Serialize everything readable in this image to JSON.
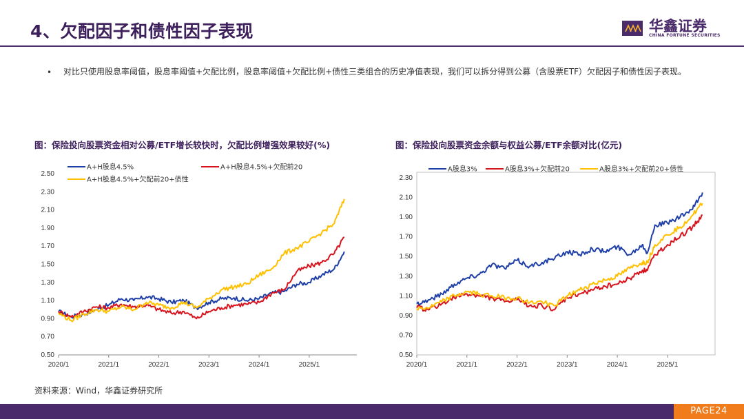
{
  "header": {
    "title": "4、欠配因子和债性因子表现",
    "logo_cn": "华鑫证券",
    "logo_en": "CHINA FORTUNE SECURITIES"
  },
  "bullet": "对比只使用股息率阈值，股息率阈值+欠配比例，股息率阈值+欠配比例+债性三类组合的历史净值表现，我们可以拆分得到公募（含股票ETF）欠配因子和债性因子表现。",
  "source": "资料来源：Wind，华鑫证券研究所",
  "page": "PAGE24",
  "colors": {
    "blue": "#1f3fa8",
    "red": "#d8131d",
    "yellow": "#ffc000",
    "brand": "#4a2a6a",
    "accent": "#f07c1c"
  },
  "chart_data": [
    {
      "type": "line",
      "title": "图：保险投向股票资金相对公募/ETF增长较快时，欠配比例增强效果较好(%)",
      "ylim": [
        0.5,
        2.5
      ],
      "yticks": [
        "0.50",
        "0.70",
        "0.90",
        "1.10",
        "1.30",
        "1.50",
        "1.70",
        "1.90",
        "2.10",
        "2.30",
        "2.50"
      ],
      "xticks": [
        "2020/1",
        "2021/1",
        "2022/1",
        "2023/1",
        "2024/1",
        "2025/1"
      ],
      "xlim": [
        2020.0,
        2025.95
      ],
      "legend_position": "top",
      "series": [
        {
          "name": "A+H股息4.5%",
          "color": "#1f3fa8",
          "x": [
            2020.0,
            2020.25,
            2020.5,
            2020.75,
            2021.0,
            2021.25,
            2021.5,
            2021.75,
            2022.0,
            2022.25,
            2022.5,
            2022.75,
            2023.0,
            2023.25,
            2023.5,
            2023.75,
            2024.0,
            2024.25,
            2024.5,
            2024.75,
            2025.0,
            2025.25,
            2025.5,
            2025.7
          ],
          "y": [
            0.98,
            0.92,
            0.95,
            1.0,
            1.05,
            1.12,
            1.1,
            1.14,
            1.12,
            1.08,
            1.1,
            1.02,
            1.08,
            1.12,
            1.13,
            1.1,
            1.12,
            1.18,
            1.2,
            1.28,
            1.3,
            1.38,
            1.45,
            1.64
          ]
        },
        {
          "name": "A+H股息4.5%+欠配前20",
          "color": "#d8131d",
          "x": [
            2020.0,
            2020.25,
            2020.5,
            2020.75,
            2021.0,
            2021.25,
            2021.5,
            2021.75,
            2022.0,
            2022.25,
            2022.5,
            2022.75,
            2023.0,
            2023.25,
            2023.5,
            2023.75,
            2024.0,
            2024.25,
            2024.5,
            2024.75,
            2025.0,
            2025.25,
            2025.5,
            2025.7
          ],
          "y": [
            0.98,
            0.92,
            0.98,
            1.03,
            1.02,
            1.06,
            1.03,
            1.05,
            1.0,
            0.96,
            0.98,
            0.9,
            0.98,
            1.02,
            1.05,
            1.06,
            1.08,
            1.18,
            1.22,
            1.42,
            1.48,
            1.52,
            1.62,
            1.8
          ]
        },
        {
          "name": "A+H股息4.5%+欠配前20+债性",
          "color": "#ffc000",
          "x": [
            2020.0,
            2020.25,
            2020.5,
            2020.75,
            2021.0,
            2021.25,
            2021.5,
            2021.75,
            2022.0,
            2022.25,
            2022.5,
            2022.75,
            2023.0,
            2023.25,
            2023.5,
            2023.75,
            2024.0,
            2024.25,
            2024.5,
            2024.75,
            2025.0,
            2025.25,
            2025.5,
            2025.7
          ],
          "y": [
            0.96,
            0.88,
            0.95,
            1.0,
            0.98,
            1.03,
            1.0,
            1.08,
            1.05,
            1.02,
            1.08,
            1.02,
            1.12,
            1.22,
            1.25,
            1.28,
            1.38,
            1.45,
            1.62,
            1.68,
            1.75,
            1.85,
            1.95,
            2.22
          ]
        }
      ]
    },
    {
      "type": "line",
      "title": "图：保险投向股票资金余额与权益公募/ETF余额对比(亿元)",
      "ylim": [
        0.5,
        2.3
      ],
      "yticks": [
        "0.50",
        "0.70",
        "0.90",
        "1.10",
        "1.30",
        "1.50",
        "1.70",
        "1.90",
        "2.10",
        "2.30"
      ],
      "xticks": [
        "2020/1",
        "2021/1",
        "2022/1",
        "2023/1",
        "2024/1",
        "2025/1"
      ],
      "xlim": [
        2020.0,
        2025.95
      ],
      "legend_position": "top",
      "series": [
        {
          "name": "A股息3%",
          "color": "#1f3fa8",
          "x": [
            2020.0,
            2020.25,
            2020.5,
            2020.75,
            2021.0,
            2021.25,
            2021.5,
            2021.75,
            2022.0,
            2022.25,
            2022.5,
            2022.75,
            2023.0,
            2023.25,
            2023.5,
            2023.75,
            2024.0,
            2024.25,
            2024.5,
            2024.6,
            2024.75,
            2025.0,
            2025.25,
            2025.5,
            2025.7
          ],
          "y": [
            1.02,
            1.06,
            1.12,
            1.22,
            1.28,
            1.32,
            1.42,
            1.38,
            1.46,
            1.4,
            1.44,
            1.48,
            1.55,
            1.52,
            1.58,
            1.55,
            1.6,
            1.52,
            1.62,
            1.54,
            1.82,
            1.84,
            1.9,
            1.98,
            2.15
          ]
        },
        {
          "name": "A股息3%+欠配前20",
          "color": "#d8131d",
          "x": [
            2020.0,
            2020.25,
            2020.5,
            2020.75,
            2021.0,
            2021.25,
            2021.5,
            2021.75,
            2022.0,
            2022.25,
            2022.5,
            2022.75,
            2023.0,
            2023.25,
            2023.5,
            2023.75,
            2024.0,
            2024.25,
            2024.5,
            2024.6,
            2024.75,
            2025.0,
            2025.25,
            2025.5,
            2025.7
          ],
          "y": [
            0.98,
            0.96,
            1.02,
            1.08,
            1.12,
            1.1,
            1.08,
            1.04,
            1.06,
            1.0,
            1.0,
            0.96,
            1.08,
            1.12,
            1.16,
            1.2,
            1.22,
            1.28,
            1.36,
            1.36,
            1.52,
            1.62,
            1.7,
            1.8,
            1.92
          ]
        },
        {
          "name": "A股息3%+欠配前20+债性",
          "color": "#ffc000",
          "x": [
            2020.0,
            2020.25,
            2020.5,
            2020.75,
            2021.0,
            2021.25,
            2021.5,
            2021.75,
            2022.0,
            2022.25,
            2022.5,
            2022.75,
            2023.0,
            2023.25,
            2023.5,
            2023.75,
            2024.0,
            2024.25,
            2024.5,
            2024.6,
            2024.75,
            2025.0,
            2025.25,
            2025.5,
            2025.7
          ],
          "y": [
            0.97,
            0.98,
            1.04,
            1.1,
            1.14,
            1.12,
            1.1,
            1.08,
            1.08,
            1.03,
            1.04,
            1.0,
            1.1,
            1.16,
            1.22,
            1.26,
            1.3,
            1.38,
            1.44,
            1.44,
            1.62,
            1.72,
            1.8,
            1.92,
            2.04
          ]
        }
      ]
    }
  ]
}
